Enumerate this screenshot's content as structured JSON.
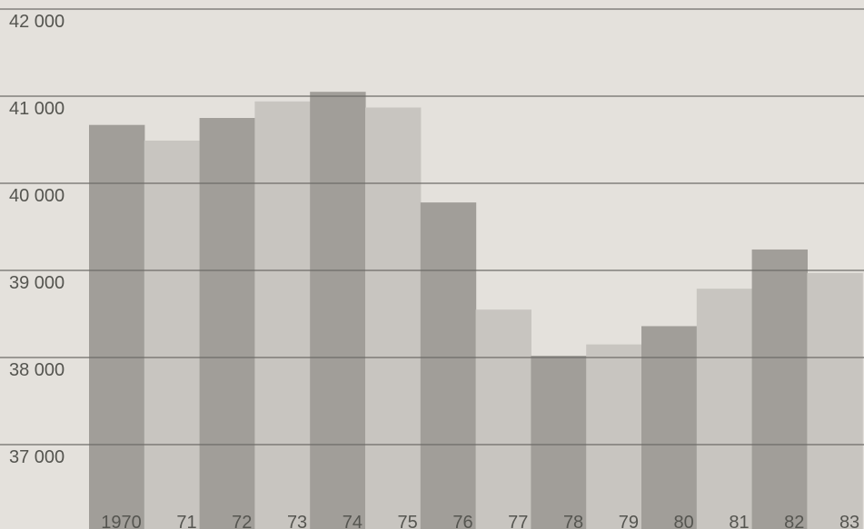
{
  "chart_data": {
    "type": "bar",
    "title": "",
    "xlabel": "",
    "ylabel": "",
    "categories": [
      "1970",
      "71",
      "72",
      "73",
      "74",
      "75",
      "76",
      "77",
      "78",
      "79",
      "80",
      "81",
      "82",
      "83"
    ],
    "values": [
      40670,
      40490,
      40750,
      40940,
      41050,
      40870,
      39780,
      38550,
      38020,
      38150,
      38360,
      38790,
      39240,
      38970
    ],
    "ylim": [
      36300,
      42100
    ],
    "yticks": [
      37000,
      38000,
      39000,
      40000,
      41000,
      42000
    ],
    "ytick_labels": [
      "37 000",
      "38 000",
      "39 000",
      "40 000",
      "41 000",
      "42 000"
    ],
    "grid": true,
    "colors": {
      "bar_dark": "#a19e99",
      "bar_light": "#c8c5c0",
      "background": "#e4e1dc",
      "grid": "#6e6c68"
    }
  }
}
